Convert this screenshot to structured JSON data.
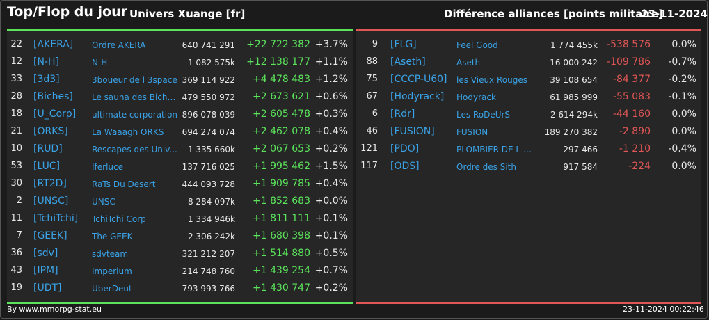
{
  "header": {
    "title": "Top/Flop du jour",
    "subtitle": "Univers Xuange [fr]",
    "right_title": "Différence alliances [points militaire]",
    "date": "23-11-2024"
  },
  "top": [
    {
      "rank": "22",
      "tag": "[AKERA]",
      "name": "Ordre AKERA",
      "points": "640 741 291",
      "diff": "+22 722 382",
      "pct": "+3.7%"
    },
    {
      "rank": "12",
      "tag": "[N-H]",
      "name": "N-H",
      "points": "1 082 575k",
      "diff": "+12 138 177",
      "pct": "+1.1%"
    },
    {
      "rank": "33",
      "tag": "[3d3]",
      "name": "3boueur de l 3space",
      "points": "369 114 922",
      "diff": "+4 478 483",
      "pct": "+1.2%"
    },
    {
      "rank": "28",
      "tag": "[Biches]",
      "name": "Le sauna des Biche...",
      "points": "479 550 972",
      "diff": "+2 673 621",
      "pct": "+0.6%"
    },
    {
      "rank": "18",
      "tag": "[U_Corp]",
      "name": "ultimate corporation",
      "points": "896 078 039",
      "diff": "+2 605 478",
      "pct": "+0.3%"
    },
    {
      "rank": "21",
      "tag": "[ORKS]",
      "name": "La Waaagh ORKS",
      "points": "694 274 074",
      "diff": "+2 462 078",
      "pct": "+0.4%"
    },
    {
      "rank": "10",
      "tag": "[RUD]",
      "name": "Rescapes des Univ...",
      "points": "1 335 660k",
      "diff": "+2 067 653",
      "pct": "+0.2%"
    },
    {
      "rank": "53",
      "tag": "[LUC]",
      "name": "Iferluce",
      "points": "137 716 025",
      "diff": "+1 995 462",
      "pct": "+1.5%"
    },
    {
      "rank": "30",
      "tag": "[RT2D]",
      "name": "RaTs Du Desert",
      "points": "444 093 728",
      "diff": "+1 909 785",
      "pct": "+0.4%"
    },
    {
      "rank": "2",
      "tag": "[UNSC]",
      "name": "UNSC",
      "points": "8 284 097k",
      "diff": "+1 852 683",
      "pct": "+0.0%"
    },
    {
      "rank": "11",
      "tag": "[TchiTchi]",
      "name": "TchiTchi Corp",
      "points": "1 334 946k",
      "diff": "+1 811 111",
      "pct": "+0.1%"
    },
    {
      "rank": "7",
      "tag": "[GEEK]",
      "name": "The GEEK",
      "points": "2 306 242k",
      "diff": "+1 680 398",
      "pct": "+0.1%"
    },
    {
      "rank": "36",
      "tag": "[sdv]",
      "name": "sdvteam",
      "points": "321 212 207",
      "diff": "+1 514 880",
      "pct": "+0.5%"
    },
    {
      "rank": "43",
      "tag": "[IPM]",
      "name": "Imperium",
      "points": "214 748 760",
      "diff": "+1 439 254",
      "pct": "+0.7%"
    },
    {
      "rank": "19",
      "tag": "[UDT]",
      "name": "UberDeut",
      "points": "793 993 766",
      "diff": "+1 430 747",
      "pct": "+0.2%"
    }
  ],
  "flop": [
    {
      "rank": "9",
      "tag": "[FLG]",
      "name": "Feel Good",
      "points": "1 774 455k",
      "diff": "-538 576",
      "pct": "0.0%"
    },
    {
      "rank": "88",
      "tag": "[Aseth]",
      "name": "Aseth",
      "points": "16 000 242",
      "diff": "-109 786",
      "pct": "-0.7%"
    },
    {
      "rank": "75",
      "tag": "[CCCP-U60]",
      "name": "les Vieux Rouges",
      "points": "39 108 654",
      "diff": "-84 377",
      "pct": "-0.2%"
    },
    {
      "rank": "67",
      "tag": "[Hodyrack]",
      "name": "Hodyrack",
      "points": "61 985 999",
      "diff": "-55 083",
      "pct": "-0.1%"
    },
    {
      "rank": "6",
      "tag": "[Rdr]",
      "name": "Les RoDeUrS",
      "points": "2 614 294k",
      "diff": "-44 160",
      "pct": "0.0%"
    },
    {
      "rank": "46",
      "tag": "[FUSION]",
      "name": "FUSION",
      "points": "189 270 382",
      "diff": "-2 890",
      "pct": "0.0%"
    },
    {
      "rank": "121",
      "tag": "[PDO]",
      "name": "PLOMBIER DE L O...",
      "points": "297 466",
      "diff": "-1 210",
      "pct": "-0.4%"
    },
    {
      "rank": "117",
      "tag": "[ODS]",
      "name": "Ordre des Sith",
      "points": "917 584",
      "diff": "-224",
      "pct": "0.0%"
    }
  ],
  "footer": {
    "source": "By www.mmorpg-stat.eu",
    "timestamp": "23-11-2024 00:22:46"
  },
  "colors": {
    "top_accent": "#5be35b",
    "flop_accent": "#e05555",
    "link": "#3aa2e6"
  }
}
